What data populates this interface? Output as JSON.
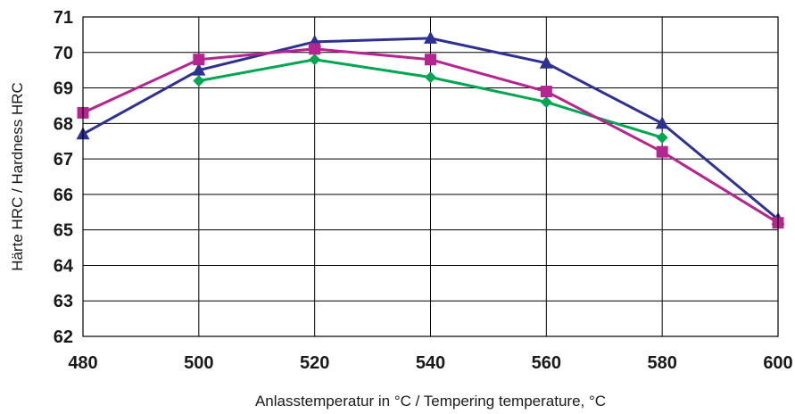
{
  "chart_data": {
    "type": "line",
    "title": "",
    "xlabel": "Anlasstemperatur in °C / Tempering temperature, °C",
    "ylabel": "Härte HRC / Hardness HRC",
    "xlim": [
      480,
      600
    ],
    "ylim": [
      62,
      71
    ],
    "x_ticks": [
      480,
      500,
      520,
      540,
      560,
      580,
      600
    ],
    "y_ticks": [
      62,
      63,
      64,
      65,
      66,
      67,
      68,
      69,
      70,
      71
    ],
    "grid": "horizontal",
    "legend": "none",
    "series": [
      {
        "color": "#00a650",
        "marker": "diamond",
        "points": [
          [
            500,
            69.2
          ],
          [
            520,
            69.8
          ],
          [
            540,
            69.3
          ],
          [
            560,
            68.6
          ],
          [
            580,
            67.6
          ]
        ]
      },
      {
        "color": "#2e3192",
        "marker": "triangle",
        "points": [
          [
            480,
            67.7
          ],
          [
            500,
            69.5
          ],
          [
            520,
            70.3
          ],
          [
            540,
            70.4
          ],
          [
            560,
            69.7
          ],
          [
            580,
            68.0
          ],
          [
            600,
            65.3
          ]
        ]
      },
      {
        "color": "#b5258f",
        "marker": "square",
        "points": [
          [
            480,
            68.3
          ],
          [
            500,
            69.8
          ],
          [
            520,
            70.1
          ],
          [
            540,
            69.8
          ],
          [
            560,
            68.9
          ],
          [
            580,
            67.2
          ],
          [
            600,
            65.2
          ]
        ]
      }
    ]
  }
}
